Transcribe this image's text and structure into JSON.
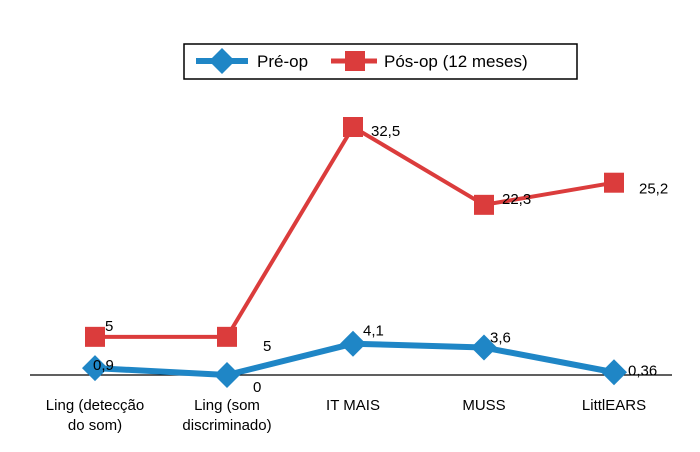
{
  "colors": {
    "background": "#ffffff",
    "axis": "#000000",
    "text": "#000000"
  },
  "chart_data": {
    "type": "line",
    "title": "",
    "xlabel": "",
    "ylabel": "",
    "categories": [
      [
        "Ling (detecção",
        "do som)"
      ],
      [
        "Ling (som",
        "discriminado)"
      ],
      [
        "IT MAIS"
      ],
      [
        "MUSS"
      ],
      [
        "LittlEARS"
      ]
    ],
    "series": [
      {
        "name": "Pré-op",
        "color": "#1f86c6",
        "marker": "diamond",
        "values": [
          0.9,
          0,
          4.1,
          3.6,
          0.36
        ],
        "labels": [
          "0,9",
          "0",
          "4,1",
          "3,6",
          "0,36"
        ],
        "label_position": "right"
      },
      {
        "name": "Pós-op (12 meses)",
        "color": "#db3c3c",
        "marker": "square",
        "values": [
          5,
          5,
          32.5,
          22.3,
          25.2
        ],
        "labels": [
          "5",
          "5",
          "32,5",
          "22,3",
          "25,2"
        ],
        "label_position": "right"
      }
    ],
    "ylim": [
      0,
      35
    ],
    "grid": false,
    "legend": {
      "placement": "top",
      "entries": [
        "Pré-op",
        "Pós-op (12 meses)"
      ]
    }
  }
}
